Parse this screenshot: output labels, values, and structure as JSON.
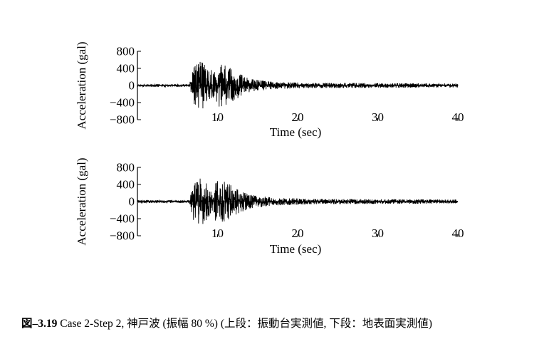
{
  "chart_data": [
    {
      "type": "line",
      "panel": "top",
      "xlabel": "Time (sec)",
      "ylabel": "Acceleration (gal)",
      "xticks": [
        10,
        20,
        30,
        40
      ],
      "yticks": [
        800,
        400,
        0,
        -400,
        -800
      ],
      "xlim": [
        0,
        40
      ],
      "ylim": [
        -800,
        800
      ],
      "grid": false,
      "envelope": [
        {
          "t": 0,
          "amp": 30
        },
        {
          "t": 6.5,
          "amp": 30
        },
        {
          "t": 7.0,
          "amp": 420
        },
        {
          "t": 8.0,
          "amp": 580
        },
        {
          "t": 9.0,
          "amp": 320
        },
        {
          "t": 10.0,
          "amp": 500
        },
        {
          "t": 11.0,
          "amp": 470
        },
        {
          "t": 12.5,
          "amp": 300
        },
        {
          "t": 14.0,
          "amp": 150
        },
        {
          "t": 17.0,
          "amp": 80
        },
        {
          "t": 22.0,
          "amp": 60
        },
        {
          "t": 40.0,
          "amp": 45
        }
      ]
    },
    {
      "type": "line",
      "panel": "bottom",
      "xlabel": "Time (sec)",
      "ylabel": "Acceleration (gal)",
      "xticks": [
        10,
        20,
        30,
        40
      ],
      "yticks": [
        800,
        400,
        0,
        -400,
        -800
      ],
      "xlim": [
        0,
        40
      ],
      "ylim": [
        -800,
        800
      ],
      "grid": false,
      "envelope": [
        {
          "t": 0,
          "amp": 30
        },
        {
          "t": 6.5,
          "amp": 30
        },
        {
          "t": 7.0,
          "amp": 430
        },
        {
          "t": 8.0,
          "amp": 560
        },
        {
          "t": 9.0,
          "amp": 340
        },
        {
          "t": 10.0,
          "amp": 480
        },
        {
          "t": 11.0,
          "amp": 460
        },
        {
          "t": 12.5,
          "amp": 280
        },
        {
          "t": 14.0,
          "amp": 160
        },
        {
          "t": 17.0,
          "amp": 90
        },
        {
          "t": 22.0,
          "amp": 60
        },
        {
          "t": 40.0,
          "amp": 45
        }
      ]
    }
  ],
  "caption": {
    "number": "図–3.19",
    "text": " Case 2-Step 2, 神戸波 (振幅 80 %) (上段：振動台実測値,  下段：地表面実測値)"
  }
}
